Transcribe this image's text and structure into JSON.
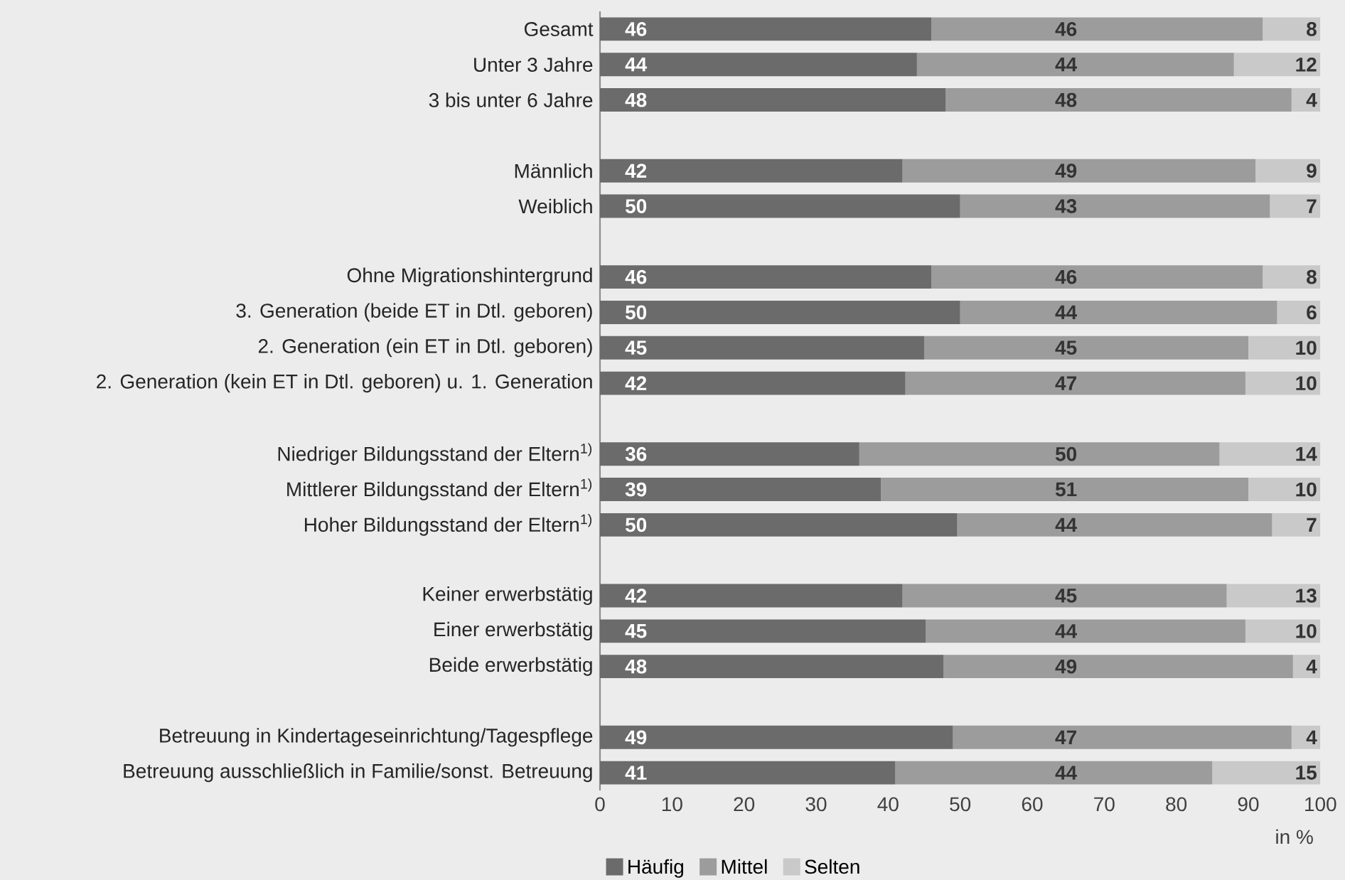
{
  "chart_data": {
    "type": "bar",
    "orientation": "horizontal",
    "stacked": true,
    "legend": "bottom",
    "xlabel": "in %",
    "xlim": [
      0,
      100
    ],
    "xticks": [
      0,
      10,
      20,
      30,
      40,
      50,
      60,
      70,
      80,
      90,
      100
    ],
    "categories": [
      "Gesamt",
      "Unter 3 Jahre",
      "3 bis unter 6 Jahre",
      null,
      "Männlich",
      "Weiblich",
      null,
      "Ohne Migrationshintergrund",
      "3. Generation (beide ET in Dtl. geboren)",
      "2. Generation (ein ET in Dtl. geboren)",
      "2. Generation (kein ET in Dtl. geboren) u. 1. Generation",
      null,
      "Niedriger Bildungsstand der Eltern$^{1)}$",
      "Mittlerer Bildungsstand der Eltern$^{1)}$",
      "Hoher Bildungsstand der Eltern$^{1)}$",
      null,
      "Keiner erwerbstätig",
      "Einer erwerbstätig",
      "Beide erwerbstätig",
      null,
      "Betreuung in Kindertageseinrichtung/Tagespflege",
      "Betreuung ausschließlich in Familie/sonst. Betreuung"
    ],
    "series": [
      {
        "name": "Häufig",
        "color": "#6b6b6b",
        "values": [
          46,
          44,
          48,
          null,
          42,
          50,
          null,
          46,
          50,
          45,
          42.4,
          null,
          36,
          39,
          49.6,
          null,
          42,
          45.2,
          47.7,
          null,
          49,
          41
        ],
        "value_labels": [
          "46",
          "44",
          "48",
          null,
          "42",
          "50",
          null,
          "46",
          "50",
          "45",
          "42",
          null,
          "36",
          "39",
          "50",
          null,
          "42",
          "45",
          "48",
          null,
          "49",
          "41"
        ]
      },
      {
        "name": "Mittel",
        "color": "#9c9c9c",
        "values": [
          46,
          44,
          48,
          null,
          49,
          43,
          null,
          46,
          44,
          45,
          47.2,
          null,
          50,
          51,
          43.7,
          null,
          45,
          44.4,
          48.5,
          null,
          47,
          44
        ],
        "value_labels": [
          "46",
          "44",
          "48",
          null,
          "49",
          "43",
          null,
          "46",
          "44",
          "45",
          "47",
          null,
          "50",
          "51",
          "44",
          null,
          "45",
          "44",
          "49",
          null,
          "47",
          "44"
        ]
      },
      {
        "name": "Selten",
        "color": "#c9c9c9",
        "values": [
          8,
          12,
          4,
          null,
          9,
          7,
          null,
          8,
          6,
          10,
          10.4,
          null,
          14,
          10,
          6.7,
          null,
          13,
          10.4,
          3.8,
          null,
          4,
          15
        ],
        "value_labels": [
          "8",
          "12",
          "4",
          null,
          "9",
          "7",
          null,
          "8",
          "6",
          "10",
          "10",
          null,
          "14",
          "10",
          "7",
          null,
          "13",
          "10",
          "4",
          null,
          "4",
          "15"
        ]
      }
    ]
  }
}
